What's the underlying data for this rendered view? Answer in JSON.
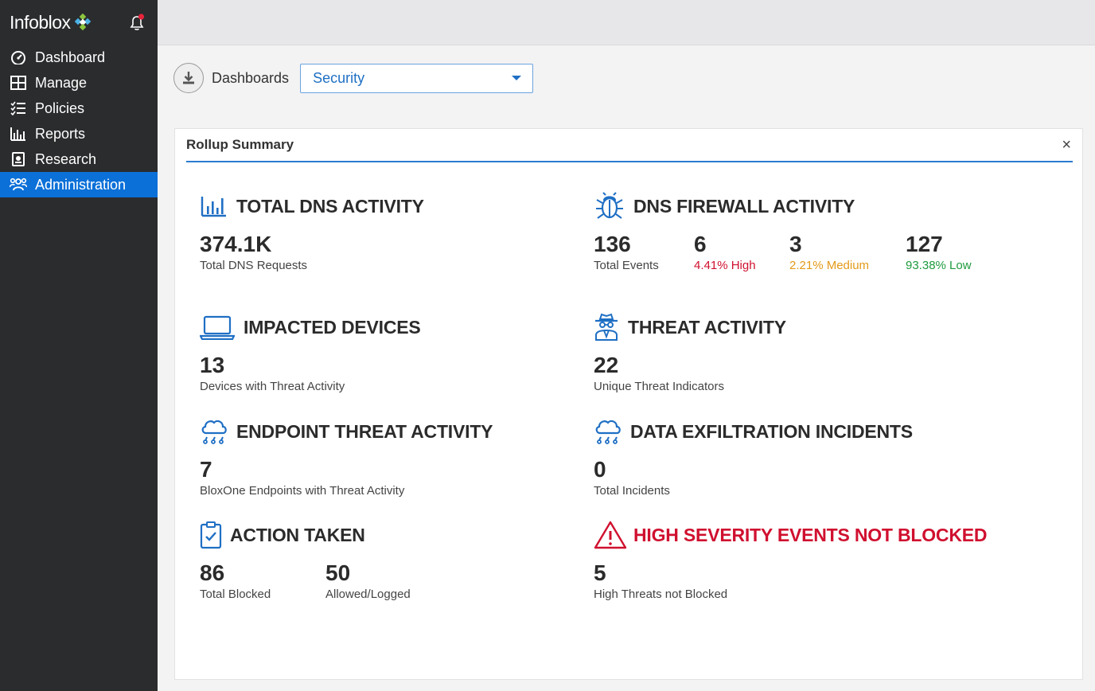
{
  "brand": {
    "name": "Infoblox"
  },
  "colors": {
    "sidebar_bg": "#2b2c2e",
    "accent": "#0b70d8",
    "alert_red": "#d0102f",
    "medium_orange": "#e39a1a",
    "low_green": "#1e9a3e"
  },
  "sidebar": {
    "items": [
      {
        "label": "Dashboard",
        "icon": "gauge-icon"
      },
      {
        "label": "Manage",
        "icon": "grid-icon"
      },
      {
        "label": "Policies",
        "icon": "checklist-icon"
      },
      {
        "label": "Reports",
        "icon": "bar-chart-icon"
      },
      {
        "label": "Research",
        "icon": "research-icon"
      },
      {
        "label": "Administration",
        "icon": "users-icon",
        "active": true
      }
    ]
  },
  "toolbar": {
    "dashboards_label": "Dashboards",
    "selected_dashboard": "Security"
  },
  "panel": {
    "title": "Rollup Summary",
    "close": "×",
    "sections": {
      "total_dns": {
        "title": "TOTAL DNS ACTIVITY",
        "metrics": [
          {
            "value": "374.1K",
            "label": "Total DNS Requests"
          }
        ]
      },
      "dns_firewall": {
        "title": "DNS FIREWALL ACTIVITY",
        "metrics": [
          {
            "value": "136",
            "label": "Total Events"
          },
          {
            "value": "6",
            "label": "4.41% High"
          },
          {
            "value": "3",
            "label": "2.21% Medium"
          },
          {
            "value": "127",
            "label": "93.38% Low"
          }
        ]
      },
      "impacted_devices": {
        "title": "IMPACTED DEVICES",
        "metrics": [
          {
            "value": "13",
            "label": "Devices with Threat Activity"
          }
        ]
      },
      "threat_activity": {
        "title": "THREAT ACTIVITY",
        "metrics": [
          {
            "value": "22",
            "label": "Unique Threat Indicators"
          }
        ]
      },
      "endpoint_threat": {
        "title": "ENDPOINT THREAT ACTIVITY",
        "metrics": [
          {
            "value": "7",
            "label": "BloxOne Endpoints with Threat Activity"
          }
        ]
      },
      "data_exfiltration": {
        "title": "DATA EXFILTRATION INCIDENTS",
        "metrics": [
          {
            "value": "0",
            "label": "Total Incidents"
          }
        ]
      },
      "action_taken": {
        "title": "ACTION TAKEN",
        "metrics": [
          {
            "value": "86",
            "label": "Total Blocked"
          },
          {
            "value": "50",
            "label": "Allowed/Logged"
          }
        ]
      },
      "high_severity": {
        "title": "HIGH SEVERITY EVENTS NOT BLOCKED",
        "metrics": [
          {
            "value": "5",
            "label": "High Threats not Blocked"
          }
        ]
      }
    }
  }
}
